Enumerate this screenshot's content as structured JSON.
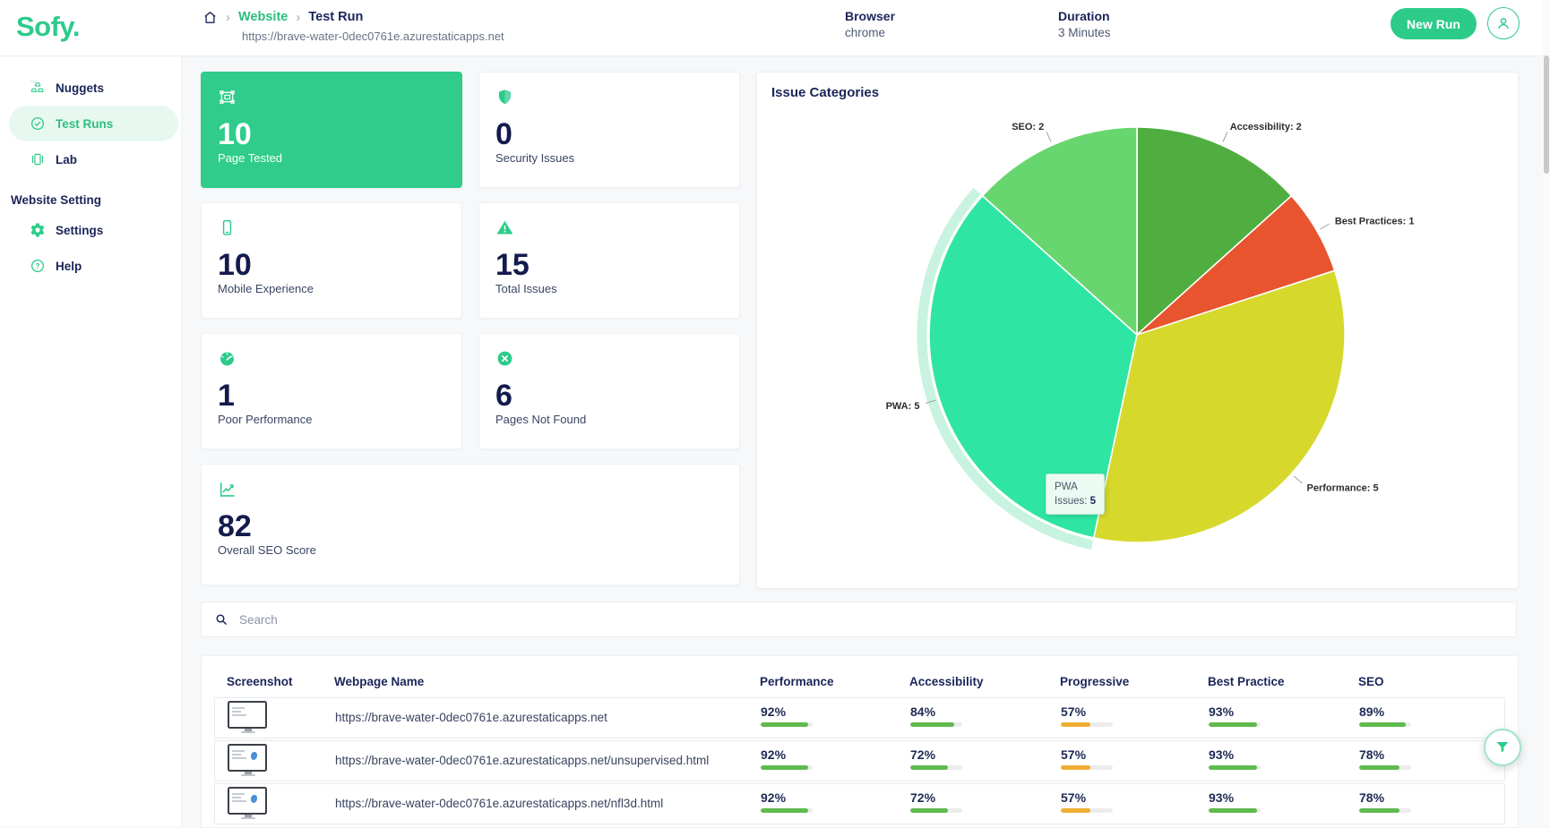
{
  "brand": {
    "logo": "Sofy."
  },
  "colors": {
    "accent": "#2dcb8a",
    "highlight_card": "#2fcc8b",
    "navy": "#1b2559",
    "bar_good": "#5fba4f",
    "bar_warn": "#f0ad33"
  },
  "header": {
    "breadcrumb": {
      "section": "Website",
      "page": "Test Run",
      "url": "https://brave-water-0dec0761e.azurestaticapps.net"
    },
    "browser": {
      "label": "Browser",
      "value": "chrome"
    },
    "duration": {
      "label": "Duration",
      "value": "3 Minutes"
    },
    "new_run_label": "New Run"
  },
  "sidebar": {
    "items": [
      {
        "label": "Nuggets",
        "icon": "nuggets-icon",
        "active": false
      },
      {
        "label": "Test Runs",
        "icon": "check-circle-icon",
        "active": true
      },
      {
        "label": "Lab",
        "icon": "lab-icon",
        "active": false
      }
    ],
    "section_label": "Website Setting",
    "section_items": [
      {
        "label": "Settings",
        "icon": "gear-icon",
        "active": false
      },
      {
        "label": "Help",
        "icon": "help-icon",
        "active": false
      }
    ]
  },
  "stats": [
    {
      "value": "10",
      "label": "Page Tested",
      "icon": "screenshot-icon",
      "highlight": true,
      "wide": false
    },
    {
      "value": "0",
      "label": "Security Issues",
      "icon": "shield-icon",
      "highlight": false,
      "wide": false
    },
    {
      "value": "10",
      "label": "Mobile Experience",
      "icon": "mobile-icon",
      "highlight": false,
      "wide": false
    },
    {
      "value": "15",
      "label": "Total Issues",
      "icon": "warning-icon",
      "highlight": false,
      "wide": false
    },
    {
      "value": "1",
      "label": "Poor Performance",
      "icon": "gauge-icon",
      "highlight": false,
      "wide": false
    },
    {
      "value": "6",
      "label": "Pages Not Found",
      "icon": "x-circle-icon",
      "highlight": false,
      "wide": false
    },
    {
      "value": "82",
      "label": "Overall SEO Score",
      "icon": "trend-icon",
      "highlight": false,
      "wide": true
    }
  ],
  "chart_data": {
    "type": "pie",
    "title": "Issue Categories",
    "total": 15,
    "start_angle_deg": 0,
    "direction": "clockwise",
    "label_format": "{label}: {value}",
    "segments": [
      {
        "label": "Accessibility",
        "value": 2,
        "color": "#4fae3f",
        "highlighted": false
      },
      {
        "label": "Best Practices",
        "value": 1,
        "color": "#e8542e",
        "highlighted": false
      },
      {
        "label": "Performance",
        "value": 5,
        "color": "#d6d92c",
        "highlighted": false
      },
      {
        "label": "PWA",
        "value": 5,
        "color": "#2ee5a4",
        "highlighted": true,
        "halo_color": "#c7f3e0"
      },
      {
        "label": "SEO",
        "value": 2,
        "color": "#68d66e",
        "highlighted": false
      }
    ],
    "tooltip": {
      "title": "PWA",
      "label": "Issues:",
      "value": "5"
    }
  },
  "search": {
    "placeholder": "Search"
  },
  "table": {
    "columns": [
      "Screenshot",
      "Webpage Name",
      "Performance",
      "Accessibility",
      "Progressive",
      "Best Practice",
      "SEO"
    ],
    "rows": [
      {
        "webpage": "https://brave-water-0dec0761e.azurestaticapps.net",
        "thumb": "plain",
        "scores": {
          "performance": 92,
          "accessibility": 84,
          "progressive": 57,
          "best_practice": 93,
          "seo": 89
        }
      },
      {
        "webpage": "https://brave-water-0dec0761e.azurestaticapps.net/unsupervised.html",
        "thumb": "splash",
        "scores": {
          "performance": 92,
          "accessibility": 72,
          "progressive": 57,
          "best_practice": 93,
          "seo": 78
        }
      },
      {
        "webpage": "https://brave-water-0dec0761e.azurestaticapps.net/nfl3d.html",
        "thumb": "splash",
        "scores": {
          "performance": 92,
          "accessibility": 72,
          "progressive": 57,
          "best_practice": 93,
          "seo": 78
        }
      }
    ]
  }
}
